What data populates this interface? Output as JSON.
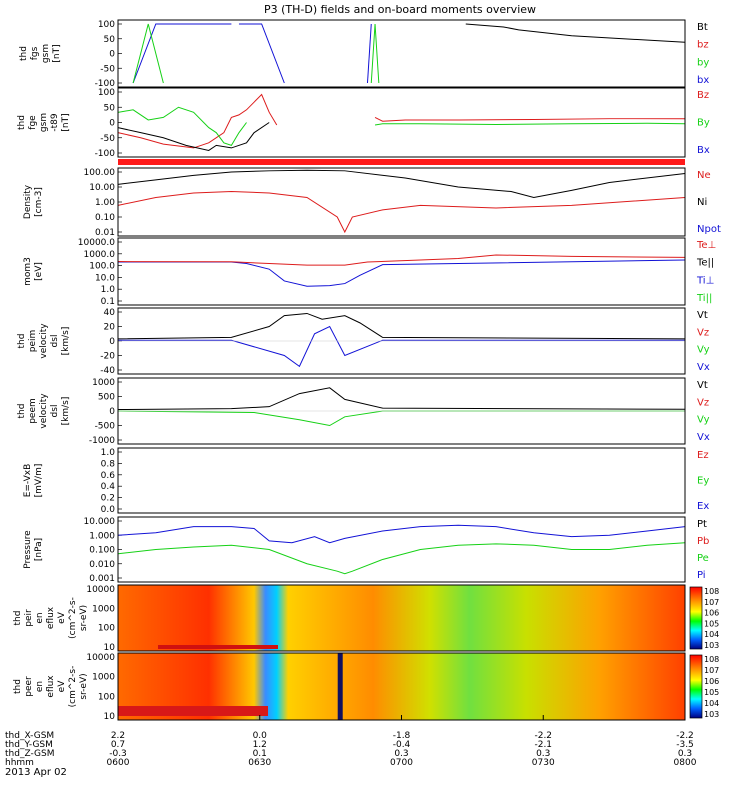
{
  "title": "P3 (TH-D) fields and on-board moments overview",
  "date": "2013 Apr 02",
  "colors": {
    "black": "#000000",
    "red": "#dd1c1c",
    "green": "#16d116",
    "blue": "#1212d6",
    "redbar": "#ff1a1a"
  },
  "chart_data": [
    {
      "id": "fgs",
      "type": "line",
      "ylabel": [
        "thd",
        "fgs",
        "gsm",
        "[nT]"
      ],
      "yticks": [
        "100",
        "50",
        "0",
        "-50",
        "-100"
      ],
      "ylim": [
        -100,
        100
      ],
      "legend": [
        {
          "text": "Bt",
          "color": "black"
        },
        {
          "text": "bz",
          "color": "red"
        },
        {
          "text": "by",
          "color": "green"
        },
        {
          "text": "bx",
          "color": "blue"
        }
      ],
      "series": [
        {
          "name": "bt",
          "color": "black",
          "x": [
            46,
            51,
            53,
            60,
            75
          ],
          "y": [
            100,
            90,
            80,
            60,
            38
          ]
        },
        {
          "name": "bx",
          "color": "blue",
          "x": [
            2,
            5,
            8,
            11,
            15
          ],
          "y": [
            -100,
            100,
            100,
            100,
            100
          ]
        },
        {
          "name": "bx",
          "color": "blue",
          "x": [
            16,
            19,
            22
          ],
          "y": [
            100,
            100,
            -100
          ]
        },
        {
          "name": "by",
          "color": "green",
          "x": [
            2,
            4,
            6
          ],
          "y": [
            -100,
            100,
            -100
          ]
        },
        {
          "name": "by",
          "color": "green",
          "x": [
            33.5,
            34,
            34.5
          ],
          "y": [
            -100,
            100,
            -100
          ]
        },
        {
          "name": "bx",
          "color": "blue",
          "x": [
            33,
            33.5
          ],
          "y": [
            -100,
            100
          ]
        }
      ]
    },
    {
      "id": "fge",
      "type": "line",
      "ylabel": [
        "thd",
        "fge",
        "gsm",
        "-t89",
        "[nT]"
      ],
      "yticks": [
        "100",
        "50",
        "0",
        "-50",
        "-100"
      ],
      "ylim": [
        -120,
        120
      ],
      "legend": [
        {
          "text": "Bz",
          "color": "red"
        },
        {
          "text": "By",
          "color": "green"
        },
        {
          "text": "Bx",
          "color": "blue"
        }
      ],
      "series": [
        {
          "name": "bz",
          "color": "red",
          "x": [
            0,
            3,
            6,
            10,
            12,
            14,
            15,
            16,
            17,
            18,
            19,
            20,
            21
          ],
          "y": [
            -40,
            -60,
            -85,
            -100,
            -80,
            -40,
            20,
            30,
            50,
            80,
            110,
            40,
            -10
          ]
        },
        {
          "name": "by",
          "color": "green",
          "x": [
            0,
            2,
            4,
            6,
            8,
            10,
            12,
            13,
            14,
            15,
            16,
            17
          ],
          "y": [
            40,
            50,
            10,
            20,
            60,
            40,
            -20,
            -40,
            -80,
            -90,
            -40,
            0
          ]
        },
        {
          "name": "bx",
          "color": "black",
          "x": [
            0,
            3,
            6,
            9,
            12,
            13,
            15,
            17,
            18,
            20
          ],
          "y": [
            -20,
            -40,
            -60,
            -90,
            -110,
            -90,
            -100,
            -80,
            -40,
            0
          ]
        },
        {
          "name": "bz2",
          "color": "red",
          "x": [
            34,
            35,
            38,
            45,
            55,
            65,
            75
          ],
          "y": [
            20,
            5,
            10,
            10,
            12,
            15,
            15
          ]
        },
        {
          "name": "by2",
          "color": "green",
          "x": [
            34,
            35,
            40,
            50,
            60,
            70,
            75
          ],
          "y": [
            -10,
            -5,
            -5,
            -8,
            -5,
            -3,
            -5
          ]
        }
      ]
    },
    {
      "id": "density",
      "type": "line",
      "ylabel": [
        "Density",
        "[cm-3]"
      ],
      "yticks": [
        "100.00",
        "10.00",
        "1.00",
        "0.10",
        "0.01"
      ],
      "ylog": true,
      "legend": [
        {
          "text": "Ne",
          "color": "red"
        },
        {
          "text": "Ni",
          "color": "black"
        },
        {
          "text": "Npot",
          "color": "blue"
        }
      ],
      "series": [
        {
          "name": "Ni",
          "color": "black",
          "x": [
            0,
            5,
            10,
            15,
            20,
            25,
            30,
            38,
            45,
            52,
            55,
            60,
            65,
            75
          ],
          "y": [
            15,
            30,
            60,
            100,
            120,
            130,
            120,
            40,
            10,
            5,
            2,
            6,
            20,
            80
          ]
        },
        {
          "name": "Ne",
          "color": "red",
          "x": [
            0,
            5,
            10,
            15,
            20,
            25,
            29,
            30,
            31,
            35,
            40,
            50,
            60,
            75
          ],
          "y": [
            0.6,
            2,
            4,
            5,
            4,
            2,
            0.1,
            0.01,
            0.1,
            0.3,
            0.6,
            0.4,
            0.6,
            2
          ]
        }
      ]
    },
    {
      "id": "mom",
      "type": "line",
      "ylabel": [
        "mom3",
        "[eV]"
      ],
      "yticks": [
        "10000.0",
        "1000.0",
        "100.0",
        "10.0",
        "1.0",
        "0.1"
      ],
      "ylog": true,
      "legend": [
        {
          "text": "Te⊥",
          "color": "red"
        },
        {
          "text": "Te||",
          "color": "black"
        },
        {
          "text": "Ti⊥",
          "color": "blue"
        },
        {
          "text": "Ti||",
          "color": "green"
        }
      ],
      "series": [
        {
          "name": "Ti",
          "color": "blue",
          "x": [
            0,
            15,
            17,
            20,
            22,
            25,
            28,
            30,
            32,
            35,
            75
          ],
          "y": [
            200,
            200,
            150,
            50,
            5,
            1.8,
            2,
            3,
            15,
            120,
            300
          ]
        },
        {
          "name": "Te",
          "color": "red",
          "x": [
            0,
            15,
            20,
            25,
            30,
            33,
            40,
            45,
            50,
            60,
            75
          ],
          "y": [
            220,
            210,
            150,
            110,
            110,
            200,
            300,
            400,
            800,
            600,
            500
          ]
        }
      ]
    },
    {
      "id": "vpeim",
      "type": "line",
      "ylabel": [
        "thd",
        "peim",
        "velocity",
        "dsl",
        "[km/s]"
      ],
      "yticks": [
        "40",
        "20",
        "0",
        "-20",
        "-40"
      ],
      "ylim": [
        -40,
        40
      ],
      "legend": [
        {
          "text": "Vt",
          "color": "black"
        },
        {
          "text": "Vz",
          "color": "red"
        },
        {
          "text": "Vy",
          "color": "green"
        },
        {
          "text": "Vx",
          "color": "blue"
        }
      ],
      "series": [
        {
          "name": "Vt",
          "color": "black",
          "x": [
            0,
            15,
            20,
            22,
            25,
            27,
            30,
            32,
            35,
            75
          ],
          "y": [
            3,
            5,
            20,
            35,
            38,
            30,
            35,
            25,
            5,
            3
          ]
        },
        {
          "name": "Vx",
          "color": "blue",
          "x": [
            0,
            15,
            22,
            24,
            26,
            28,
            30,
            35,
            75
          ],
          "y": [
            1,
            1,
            -20,
            -35,
            10,
            20,
            -20,
            1,
            1
          ]
        }
      ]
    },
    {
      "id": "vpeem",
      "type": "line",
      "ylabel": [
        "thd",
        "peem",
        "velocity",
        "dsl",
        "[km/s]"
      ],
      "yticks": [
        "1000",
        "500",
        "0",
        "-500",
        "-1000"
      ],
      "ylim": [
        -1000,
        1000
      ],
      "legend": [
        {
          "text": "Vt",
          "color": "black"
        },
        {
          "text": "Vz",
          "color": "red"
        },
        {
          "text": "Vy",
          "color": "green"
        },
        {
          "text": "Vx",
          "color": "blue"
        }
      ],
      "series": [
        {
          "name": "Vt",
          "color": "black",
          "x": [
            0,
            15,
            20,
            24,
            28,
            30,
            35,
            75
          ],
          "y": [
            50,
            80,
            150,
            600,
            800,
            400,
            100,
            60
          ]
        },
        {
          "name": "Vy",
          "color": "green",
          "x": [
            0,
            18,
            24,
            28,
            30,
            35,
            75
          ],
          "y": [
            0,
            -50,
            -300,
            -500,
            -200,
            0,
            0
          ]
        }
      ]
    },
    {
      "id": "efield",
      "type": "line",
      "ylabel": [
        "E=-VxB",
        "[mV/m]"
      ],
      "yticks": [
        "1.0",
        "0.8",
        "0.6",
        "0.4",
        "0.2",
        "0.0"
      ],
      "ylim": [
        0,
        1
      ],
      "legend": [
        {
          "text": "Ez",
          "color": "red"
        },
        {
          "text": "Ey",
          "color": "green"
        },
        {
          "text": "Ex",
          "color": "blue"
        }
      ],
      "series": []
    },
    {
      "id": "pressure",
      "type": "line",
      "ylabel": [
        "Pressure",
        "[nPa]"
      ],
      "yticks": [
        "10.000",
        "1.000",
        "0.100",
        "0.010",
        "0.001"
      ],
      "ylog": true,
      "legend": [
        {
          "text": "Pt",
          "color": "black"
        },
        {
          "text": "Pb",
          "color": "red"
        },
        {
          "text": "Pe",
          "color": "green"
        },
        {
          "text": "Pi",
          "color": "blue"
        }
      ],
      "series": [
        {
          "name": "Pi",
          "color": "blue",
          "x": [
            0,
            5,
            10,
            15,
            18,
            20,
            23,
            26,
            28,
            30,
            35,
            40,
            45,
            50,
            55,
            60,
            65,
            70,
            75
          ],
          "y": [
            1,
            1.5,
            4,
            4,
            3,
            0.4,
            0.3,
            0.8,
            0.3,
            0.6,
            2,
            4,
            5,
            4,
            1.5,
            0.8,
            1,
            2,
            4
          ]
        },
        {
          "name": "Pe",
          "color": "green",
          "x": [
            0,
            5,
            10,
            15,
            20,
            25,
            29,
            30,
            31,
            35,
            40,
            45,
            50,
            55,
            60,
            65,
            70,
            75
          ],
          "y": [
            0.05,
            0.1,
            0.15,
            0.2,
            0.1,
            0.01,
            0.003,
            0.002,
            0.003,
            0.02,
            0.1,
            0.2,
            0.25,
            0.2,
            0.1,
            0.1,
            0.2,
            0.3
          ]
        }
      ]
    },
    {
      "id": "peir_spec",
      "type": "heatmap",
      "ylabel": [
        "thd",
        "peir",
        "en",
        "eflux",
        "eV",
        "(cm^2-s-",
        "sr-eV)"
      ],
      "yticks": [
        "10000",
        "1000",
        "100",
        "10"
      ],
      "cbar_ticks": [
        "10^8",
        "10^7",
        "10^6",
        "10^5",
        "10^4",
        "10^3"
      ]
    },
    {
      "id": "peer_spec",
      "type": "heatmap",
      "ylabel": [
        "thd",
        "peer",
        "en",
        "eflux",
        "eV",
        "(cm^2-s-",
        "sr-eV)"
      ],
      "yticks": [
        "10000",
        "1000",
        "100",
        "10"
      ],
      "cbar_ticks": [
        "10^8",
        "10^7",
        "10^6",
        "10^5",
        "10^4",
        "10^3"
      ]
    }
  ],
  "x_axis": {
    "rows": [
      {
        "label": "thd_X-GSM",
        "values": [
          "2.2",
          "0.0",
          "-1.8",
          "-2.2",
          "-2.2"
        ]
      },
      {
        "label": "thd_Y-GSM",
        "values": [
          "0.7",
          "1.2",
          "-0.4",
          "-2.1",
          "-3.5"
        ]
      },
      {
        "label": "thd_Z-GSM",
        "values": [
          "-0.3",
          "0.1",
          "0.3",
          "0.3",
          "0.3"
        ]
      },
      {
        "label": "hhmm",
        "values": [
          "0600",
          "0630",
          "0700",
          "0730",
          "0800"
        ]
      }
    ]
  }
}
